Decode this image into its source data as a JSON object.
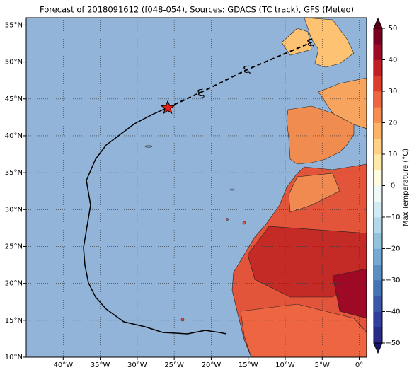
{
  "title": "Forecast of 2018091612 (f048-054), Sources: GDACS (TC track), GFS (Meteo)",
  "map": {
    "lonlim": [
      -45,
      1
    ],
    "latlim": [
      10,
      56
    ],
    "lonticks": [
      {
        "value": -40,
        "label": "40°W"
      },
      {
        "value": -35,
        "label": "35°W"
      },
      {
        "value": -30,
        "label": "30°W"
      },
      {
        "value": -25,
        "label": "25°W"
      },
      {
        "value": -20,
        "label": "20°W"
      },
      {
        "value": -15,
        "label": "15°W"
      },
      {
        "value": -10,
        "label": "10°W"
      },
      {
        "value": -5,
        "label": "5°W"
      },
      {
        "value": 0,
        "label": "0°"
      }
    ],
    "latticks": [
      {
        "value": 10,
        "label": "10°N"
      },
      {
        "value": 15,
        "label": "15°N"
      },
      {
        "value": 20,
        "label": "20°N"
      },
      {
        "value": 25,
        "label": "25°N"
      },
      {
        "value": 30,
        "label": "30°N"
      },
      {
        "value": 35,
        "label": "35°N"
      },
      {
        "value": 40,
        "label": "40°N"
      },
      {
        "value": 45,
        "label": "45°N"
      },
      {
        "value": 50,
        "label": "50°N"
      },
      {
        "value": 55,
        "label": "55°N"
      }
    ],
    "grid": true
  },
  "colorbar": {
    "label": "Max Temperature (°C)",
    "lim": [
      -50,
      50
    ],
    "ticks": [
      {
        "value": -50,
        "label": "−50"
      },
      {
        "value": -40,
        "label": "−40"
      },
      {
        "value": -30,
        "label": "−30"
      },
      {
        "value": -20,
        "label": "−20"
      },
      {
        "value": -10,
        "label": "−10"
      },
      0,
      10,
      20,
      30,
      40,
      50
    ],
    "colors": [
      "#2a2a87",
      "#313e9b",
      "#3a58a8",
      "#4574b5",
      "#5a8fc3",
      "#75a9d1",
      "#93c2de",
      "#b2d8e9",
      "#d2ebf3",
      "#eef8f7",
      "#fffbdf",
      "#fee9a9",
      "#fed185",
      "#fdb366",
      "#f88d51",
      "#ee6541",
      "#dc3d2d",
      "#c01f26",
      "#9e0a26",
      "#7a0022"
    ]
  }
}
